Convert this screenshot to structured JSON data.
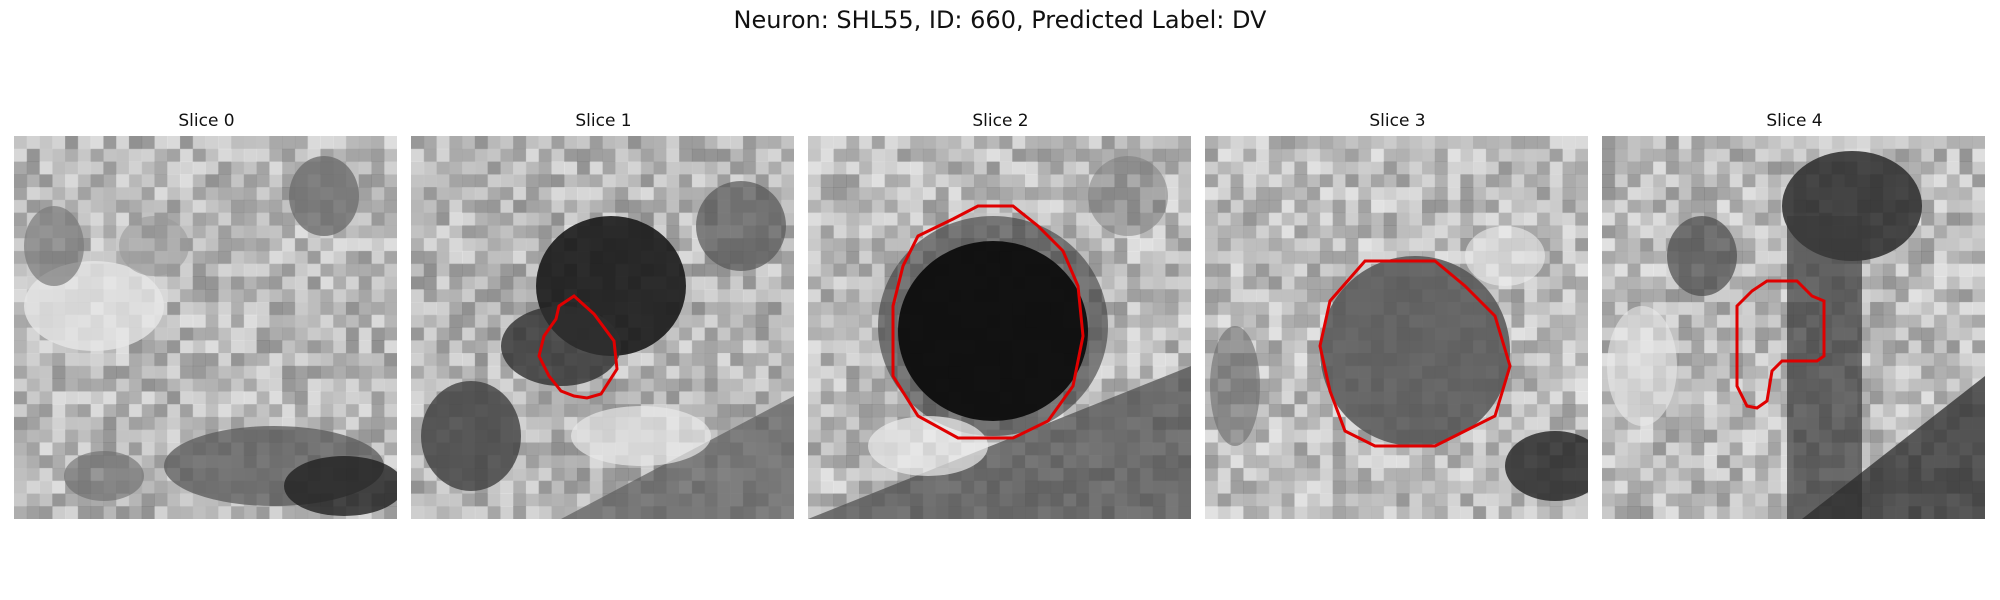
{
  "figure": {
    "title": "Neuron: SHL55, ID: 660, Predicted Label: DV",
    "contour_color": "#e00000"
  },
  "panels": [
    {
      "label": "Slice 0",
      "has_contour": false
    },
    {
      "label": "Slice 1",
      "has_contour": true
    },
    {
      "label": "Slice 2",
      "has_contour": true
    },
    {
      "label": "Slice 3",
      "has_contour": true
    },
    {
      "label": "Slice 4",
      "has_contour": true
    }
  ]
}
